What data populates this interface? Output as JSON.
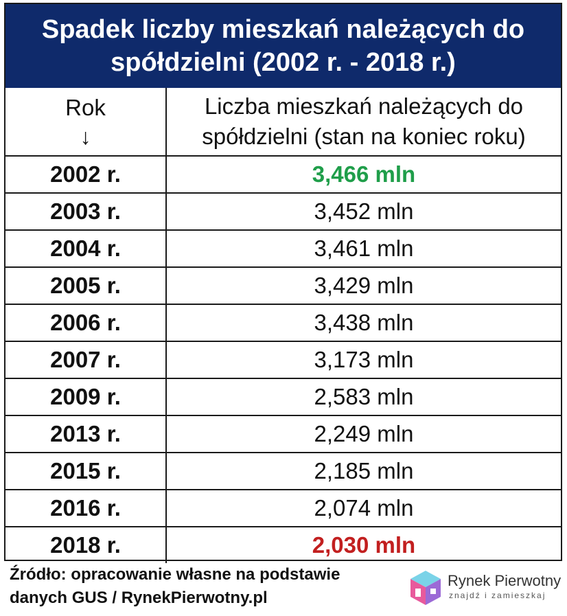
{
  "title_lines": [
    "Spadek liczby mieszkań należących do",
    "spółdzielni (2002 r. - 2018 r.)"
  ],
  "header": {
    "col1": "Rok",
    "col1_arrow": "↓",
    "col2_line1": "Liczba mieszkań należących do",
    "col2_line2": "spółdzielni (stan na koniec roku)"
  },
  "rows": [
    {
      "year": "2002 r.",
      "value": "3,466 mln",
      "highlight": "green"
    },
    {
      "year": "2003 r.",
      "value": "3,452 mln"
    },
    {
      "year": "2004 r.",
      "value": "3,461 mln"
    },
    {
      "year": "2005 r.",
      "value": "3,429 mln"
    },
    {
      "year": "2006 r.",
      "value": "3,438 mln"
    },
    {
      "year": "2007 r.",
      "value": "3,173 mln"
    },
    {
      "year": "2009 r.",
      "value": "2,583 mln"
    },
    {
      "year": "2013 r.",
      "value": "2,249 mln"
    },
    {
      "year": "2015 r.",
      "value": "2,185 mln"
    },
    {
      "year": "2016 r.",
      "value": "2,074 mln"
    },
    {
      "year": "2018 r.",
      "value": "2,030 mln",
      "highlight": "red"
    }
  ],
  "footer_lines": [
    "Źródło: opracowanie własne na podstawie",
    "danych GUS / RynekPierwotny.pl"
  ],
  "logo": {
    "name": "Rynek Pierwotny",
    "tagline": "znajdź i zamieszkaj"
  },
  "colors": {
    "title_bg": "#0f2a6b",
    "green": "#1f9e4a",
    "red": "#c21f1f"
  }
}
